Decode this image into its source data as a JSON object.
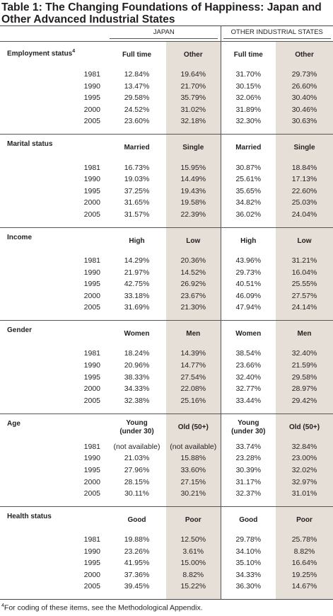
{
  "title": "Table 1: The Changing Foundations of Happiness: Japan and Other Advanced Industrial States",
  "groups": [
    "JAPAN",
    "OTHER INDUSTRIAL STATES"
  ],
  "sections": [
    {
      "label": "Employment status",
      "marker": "4",
      "columns": [
        "Full time",
        "Other",
        "Full time",
        "Other"
      ],
      "rows": [
        {
          "year": 1981,
          "values": [
            "12.84%",
            "19.64%",
            "31.70%",
            "29.73%"
          ]
        },
        {
          "year": 1990,
          "values": [
            "13.47%",
            "21.70%",
            "30.15%",
            "26.60%"
          ]
        },
        {
          "year": 1995,
          "values": [
            "29.58%",
            "35.79%",
            "32.06%",
            "30.40%"
          ]
        },
        {
          "year": 2000,
          "values": [
            "24.52%",
            "31.02%",
            "31.89%",
            "30.46%"
          ]
        },
        {
          "year": 2005,
          "values": [
            "23.60%",
            "32.18%",
            "32.30%",
            "30.63%"
          ]
        }
      ]
    },
    {
      "label": "Marital status",
      "columns": [
        "Married",
        "Single",
        "Married",
        "Single"
      ],
      "rows": [
        {
          "year": 1981,
          "values": [
            "16.73%",
            "15.95%",
            "30.87%",
            "18.84%"
          ]
        },
        {
          "year": 1990,
          "values": [
            "19.03%",
            "14.49%",
            "25.61%",
            "17.13%"
          ]
        },
        {
          "year": 1995,
          "values": [
            "37.25%",
            "19.43%",
            "35.65%",
            "22.60%"
          ]
        },
        {
          "year": 2000,
          "values": [
            "31.65%",
            "19.58%",
            "34.82%",
            "25.03%"
          ]
        },
        {
          "year": 2005,
          "values": [
            "31.57%",
            "22.39%",
            "36.02%",
            "24.04%"
          ]
        }
      ]
    },
    {
      "label": "Income",
      "columns": [
        "High",
        "Low",
        "High",
        "Low"
      ],
      "rows": [
        {
          "year": 1981,
          "values": [
            "14.29%",
            "20.36%",
            "43.96%",
            "31.21%"
          ]
        },
        {
          "year": 1990,
          "values": [
            "21.97%",
            "14.52%",
            "29.73%",
            "16.04%"
          ]
        },
        {
          "year": 1995,
          "values": [
            "42.75%",
            "26.92%",
            "40.51%",
            "25.55%"
          ]
        },
        {
          "year": 2000,
          "values": [
            "33.18%",
            "23.67%",
            "46.09%",
            "27.57%"
          ]
        },
        {
          "year": 2005,
          "values": [
            "31.69%",
            "21.30%",
            "47.94%",
            "24.14%"
          ]
        }
      ]
    },
    {
      "label": "Gender",
      "columns": [
        "Women",
        "Men",
        "Women",
        "Men"
      ],
      "rows": [
        {
          "year": 1981,
          "values": [
            "18.24%",
            "14.39%",
            "38.54%",
            "32.40%"
          ]
        },
        {
          "year": 1990,
          "values": [
            "20.96%",
            "14.77%",
            "23.66%",
            "21.59%"
          ]
        },
        {
          "year": 1995,
          "values": [
            "38.33%",
            "27.54%",
            "32.40%",
            "29.58%"
          ]
        },
        {
          "year": 2000,
          "values": [
            "34.33%",
            "22.08%",
            "32.77%",
            "28.97%"
          ]
        },
        {
          "year": 2005,
          "values": [
            "32.38%",
            "25.16%",
            "33.44%",
            "29.42%"
          ]
        }
      ]
    },
    {
      "label": "Age",
      "columns": [
        "Young\n(under 30)",
        "Old (50+)",
        "Young\n(under 30)",
        "Old (50+)"
      ],
      "rows": [
        {
          "year": 1981,
          "values": [
            "(not available)",
            "(not available)",
            "33.74%",
            "32.84%"
          ]
        },
        {
          "year": 1990,
          "values": [
            "21.03%",
            "15.88%",
            "23.28%",
            "23.00%"
          ]
        },
        {
          "year": 1995,
          "values": [
            "27.96%",
            "33.60%",
            "30.39%",
            "32.02%"
          ]
        },
        {
          "year": 2000,
          "values": [
            "28.15%",
            "27.15%",
            "31.17%",
            "32.97%"
          ]
        },
        {
          "year": 2005,
          "values": [
            "30.11%",
            "30.21%",
            "32.37%",
            "31.01%"
          ]
        }
      ]
    },
    {
      "label": "Health status",
      "columns": [
        "Good",
        "Poor",
        "Good",
        "Poor"
      ],
      "rows": [
        {
          "year": 1981,
          "values": [
            "19.88%",
            "12.50%",
            "29.78%",
            "25.78%"
          ]
        },
        {
          "year": 1990,
          "values": [
            "23.26%",
            "3.61%",
            "34.10%",
            "8.82%"
          ]
        },
        {
          "year": 1995,
          "values": [
            "41.95%",
            "15.00%",
            "35.10%",
            "16.64%"
          ]
        },
        {
          "year": 2000,
          "values": [
            "37.36%",
            "8.82%",
            "34.33%",
            "19.25%"
          ]
        },
        {
          "year": 2005,
          "values": [
            "39.45%",
            "15.22%",
            "36.30%",
            "14.67%"
          ]
        }
      ]
    }
  ],
  "footnote": {
    "marker": "4",
    "text": "For coding of these items, see the Methodological Appendix."
  }
}
